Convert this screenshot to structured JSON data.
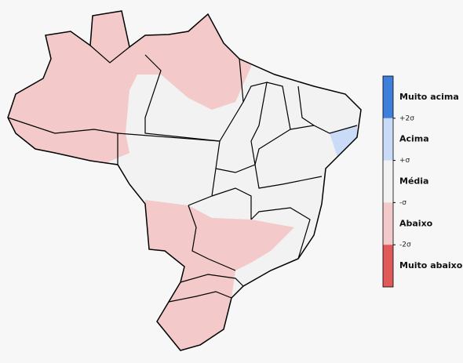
{
  "legend": {
    "categories": [
      {
        "label": "Muito acima",
        "color": "#3f7fdc"
      },
      {
        "label": "Acima",
        "color": "#c9dbf7"
      },
      {
        "label": "Média",
        "color": "#f2f2f2"
      },
      {
        "label": "Abaixo",
        "color": "#f3c9c9"
      },
      {
        "label": "Muito abaixo",
        "color": "#e05a5a"
      }
    ],
    "ticks": [
      "+2σ",
      "+σ",
      "-σ",
      "-2σ"
    ]
  }
}
